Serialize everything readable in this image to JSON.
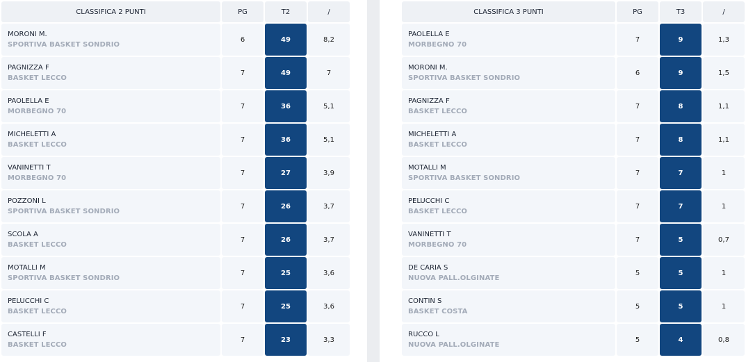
{
  "tables": [
    {
      "headers": [
        "CLASSIFICA 2 PUNTI",
        "PG",
        "T2",
        "/"
      ],
      "rows": [
        {
          "name": "MORONI M.",
          "team": "SPORTIVA BASKET SONDRIO",
          "pg": "6",
          "stat": "49",
          "ratio": "8,2"
        },
        {
          "name": "PAGNIZZA F",
          "team": "BASKET LECCO",
          "pg": "7",
          "stat": "49",
          "ratio": "7"
        },
        {
          "name": "PAOLELLA E",
          "team": "MORBEGNO 70",
          "pg": "7",
          "stat": "36",
          "ratio": "5,1"
        },
        {
          "name": "MICHELETTI A",
          "team": "BASKET LECCO",
          "pg": "7",
          "stat": "36",
          "ratio": "5,1"
        },
        {
          "name": "VANINETTI T",
          "team": "MORBEGNO 70",
          "pg": "7",
          "stat": "27",
          "ratio": "3,9"
        },
        {
          "name": "POZZONI L",
          "team": "SPORTIVA BASKET SONDRIO",
          "pg": "7",
          "stat": "26",
          "ratio": "3,7"
        },
        {
          "name": "SCOLA A",
          "team": "BASKET LECCO",
          "pg": "7",
          "stat": "26",
          "ratio": "3,7"
        },
        {
          "name": "MOTALLI M",
          "team": "SPORTIVA BASKET SONDRIO",
          "pg": "7",
          "stat": "25",
          "ratio": "3,6"
        },
        {
          "name": "PELUCCHI C",
          "team": "BASKET LECCO",
          "pg": "7",
          "stat": "25",
          "ratio": "3,6"
        },
        {
          "name": "CASTELLI F",
          "team": "BASKET LECCO",
          "pg": "7",
          "stat": "23",
          "ratio": "3,3"
        }
      ]
    },
    {
      "headers": [
        "CLASSIFICA 3 PUNTI",
        "PG",
        "T3",
        "/"
      ],
      "rows": [
        {
          "name": "PAOLELLA E",
          "team": "MORBEGNO 70",
          "pg": "7",
          "stat": "9",
          "ratio": "1,3"
        },
        {
          "name": "MORONI M.",
          "team": "SPORTIVA BASKET SONDRIO",
          "pg": "6",
          "stat": "9",
          "ratio": "1,5"
        },
        {
          "name": "PAGNIZZA F",
          "team": "BASKET LECCO",
          "pg": "7",
          "stat": "8",
          "ratio": "1,1"
        },
        {
          "name": "MICHELETTI A",
          "team": "BASKET LECCO",
          "pg": "7",
          "stat": "8",
          "ratio": "1,1"
        },
        {
          "name": "MOTALLI M",
          "team": "SPORTIVA BASKET SONDRIO",
          "pg": "7",
          "stat": "7",
          "ratio": "1"
        },
        {
          "name": "PELUCCHI C",
          "team": "BASKET LECCO",
          "pg": "7",
          "stat": "7",
          "ratio": "1"
        },
        {
          "name": "VANINETTI T",
          "team": "MORBEGNO 70",
          "pg": "7",
          "stat": "5",
          "ratio": "0,7"
        },
        {
          "name": "DE CARIA S",
          "team": "NUOVA PALL.OLGINATE",
          "pg": "5",
          "stat": "5",
          "ratio": "1"
        },
        {
          "name": "CONTIN S",
          "team": "BASKET COSTA",
          "pg": "5",
          "stat": "5",
          "ratio": "1"
        },
        {
          "name": "RUCCO L",
          "team": "NUOVA PALL.OLGINATE",
          "pg": "5",
          "stat": "4",
          "ratio": "0,8"
        }
      ]
    }
  ],
  "colors": {
    "accent": "#12467f",
    "header_bg": "#eef1f5",
    "row_bg": "#f3f6fa",
    "team_text": "#a3abb8",
    "divider": "#ebedf0"
  }
}
